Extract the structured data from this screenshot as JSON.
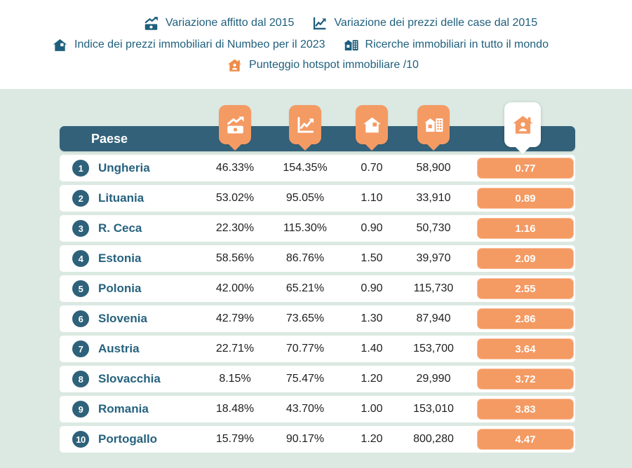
{
  "colors": {
    "teal_header": "#33617a",
    "teal_text": "#1e5f7d",
    "orange": "#f49a63",
    "mint_background": "#dbe9e2",
    "value_text": "#1e1e1e"
  },
  "legend": {
    "items": [
      {
        "icon": "money-trend-icon",
        "label": "Variazione affitto dal 2015"
      },
      {
        "icon": "chart-line-icon",
        "label": "Variazione dei prezzi delle case dal 2015"
      },
      {
        "icon": "house-icon",
        "label": "Indice dei prezzi immobiliari di Numbeo per il 2023"
      },
      {
        "icon": "house-building-icon",
        "label": "Ricerche immobiliari in tutto il mondo"
      },
      {
        "icon": "house-person-icon",
        "label": "Punteggio hotspot immobiliare /10"
      }
    ]
  },
  "table": {
    "country_header": "Paese",
    "column_icons": [
      "money-trend-icon",
      "chart-line-icon",
      "house-icon",
      "house-building-icon",
      "house-person-icon"
    ],
    "rows": [
      {
        "rank": "1",
        "country": "Ungheria",
        "rent_change": "46.33%",
        "price_change": "154.35%",
        "numbeo_index": "0.70",
        "searches": "58,900",
        "score": "0.77"
      },
      {
        "rank": "2",
        "country": "Lituania",
        "rent_change": "53.02%",
        "price_change": "95.05%",
        "numbeo_index": "1.10",
        "searches": "33,910",
        "score": "0.89"
      },
      {
        "rank": "3",
        "country": "R. Ceca",
        "rent_change": "22.30%",
        "price_change": "115.30%",
        "numbeo_index": "0.90",
        "searches": "50,730",
        "score": "1.16"
      },
      {
        "rank": "4",
        "country": "Estonia",
        "rent_change": "58.56%",
        "price_change": "86.76%",
        "numbeo_index": "1.50",
        "searches": "39,970",
        "score": "2.09"
      },
      {
        "rank": "5",
        "country": "Polonia",
        "rent_change": "42.00%",
        "price_change": "65.21%",
        "numbeo_index": "0.90",
        "searches": "115,730",
        "score": "2.55"
      },
      {
        "rank": "6",
        "country": "Slovenia",
        "rent_change": "42.79%",
        "price_change": "73.65%",
        "numbeo_index": "1.30",
        "searches": "87,940",
        "score": "2.86"
      },
      {
        "rank": "7",
        "country": "Austria",
        "rent_change": "22.71%",
        "price_change": "70.77%",
        "numbeo_index": "1.40",
        "searches": "153,700",
        "score": "3.64"
      },
      {
        "rank": "8",
        "country": "Slovacchia",
        "rent_change": "8.15%",
        "price_change": "75.47%",
        "numbeo_index": "1.20",
        "searches": "29,990",
        "score": "3.72"
      },
      {
        "rank": "9",
        "country": "Romania",
        "rent_change": "18.48%",
        "price_change": "43.70%",
        "numbeo_index": "1.00",
        "searches": "153,010",
        "score": "3.83"
      },
      {
        "rank": "10",
        "country": "Portogallo",
        "rent_change": "15.79%",
        "price_change": "90.17%",
        "numbeo_index": "1.20",
        "searches": "800,280",
        "score": "4.47"
      }
    ]
  },
  "chart_data": {
    "type": "table",
    "title": "Punteggio hotspot immobiliare /10",
    "columns": [
      "Paese",
      "Variazione affitto dal 2015",
      "Variazione dei prezzi delle case dal 2015",
      "Indice dei prezzi immobiliari di Numbeo per il 2023",
      "Ricerche immobiliari in tutto il mondo",
      "Punteggio hotspot immobiliare /10"
    ],
    "rows": [
      [
        "Ungheria",
        46.33,
        154.35,
        0.7,
        58900,
        0.77
      ],
      [
        "Lituania",
        53.02,
        95.05,
        1.1,
        33910,
        0.89
      ],
      [
        "R. Ceca",
        22.3,
        115.3,
        0.9,
        50730,
        1.16
      ],
      [
        "Estonia",
        58.56,
        86.76,
        1.5,
        39970,
        2.09
      ],
      [
        "Polonia",
        42.0,
        65.21,
        0.9,
        115730,
        2.55
      ],
      [
        "Slovenia",
        42.79,
        73.65,
        1.3,
        87940,
        2.86
      ],
      [
        "Austria",
        22.71,
        70.77,
        1.4,
        153700,
        3.64
      ],
      [
        "Slovacchia",
        8.15,
        75.47,
        1.2,
        29990,
        3.72
      ],
      [
        "Romania",
        18.48,
        43.7,
        1.0,
        153010,
        3.83
      ],
      [
        "Portogallo",
        15.79,
        90.17,
        1.2,
        800280,
        4.47
      ]
    ]
  }
}
